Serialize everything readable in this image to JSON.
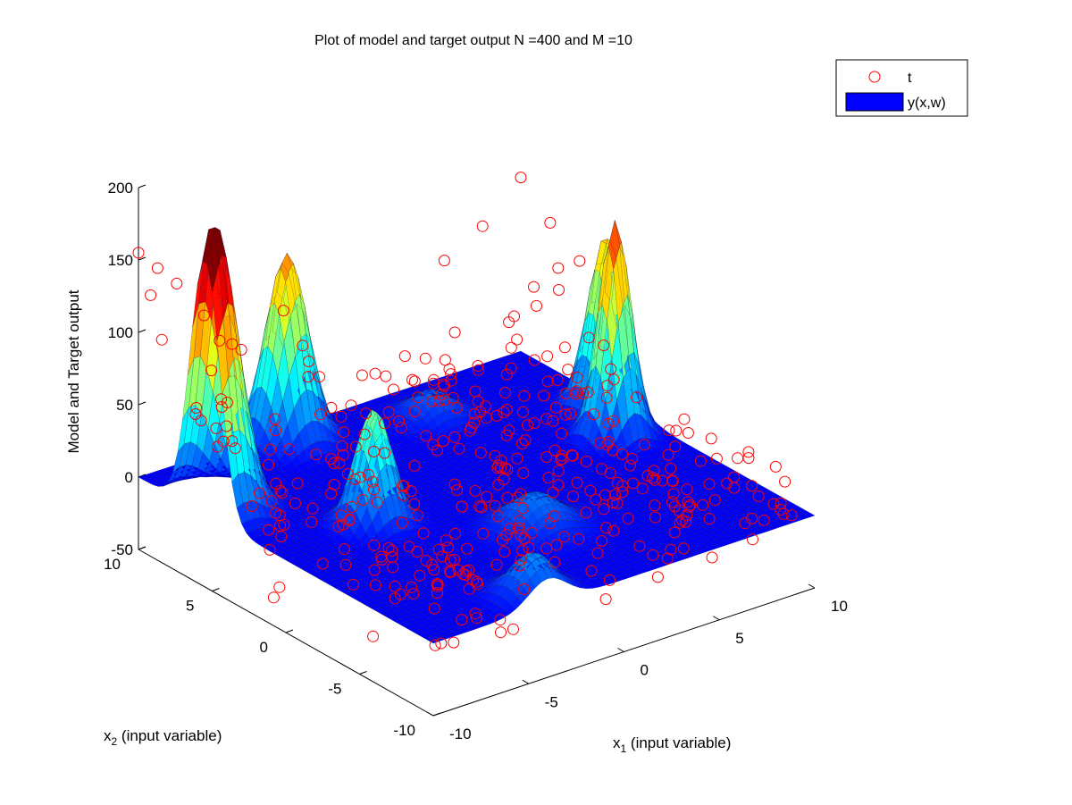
{
  "chart_data": {
    "type": "surface3d",
    "title": "Plot of model and target output N =400 and M =10",
    "zlabel": "Model and Target output",
    "x1label": {
      "base": "x",
      "sub": "1",
      "rest": " (input variable)"
    },
    "x2label": {
      "base": "x",
      "sub": "2",
      "rest": " (input variable)"
    },
    "xlim": [
      -10,
      10
    ],
    "ylim": [
      -10,
      10
    ],
    "zlim": [
      -50,
      200
    ],
    "x_ticks": [
      "-10",
      "-5",
      "0",
      "5",
      "10"
    ],
    "y_ticks": [
      "-10",
      "-5",
      "0",
      "5",
      "10"
    ],
    "z_ticks": [
      "-50",
      "0",
      "50",
      "100",
      "150",
      "200"
    ],
    "grid": false,
    "legend_position": "top-right",
    "legend": [
      {
        "label": "t",
        "marker": "circle",
        "color": "#ff0000"
      },
      {
        "label": "y(x,w)",
        "marker": "patch",
        "color": "#0000ff"
      }
    ],
    "surface_peaks": [
      {
        "x1": -9.5,
        "x2": 5.5,
        "height": 200,
        "width": 1.0
      },
      {
        "x1": -3.0,
        "x2": 9.0,
        "height": 130,
        "width": 0.9
      },
      {
        "x1": -5.0,
        "x2": 0.5,
        "height": 80,
        "width": 0.8
      },
      {
        "x1": 8.0,
        "x2": 1.0,
        "height": 150,
        "width": 0.7
      },
      {
        "x1": 9.5,
        "x2": 3.5,
        "height": 120,
        "width": 0.8
      },
      {
        "x1": -4.0,
        "x2": -9.0,
        "height": 30,
        "width": 1.0
      },
      {
        "x1": 0.0,
        "x2": -4.0,
        "height": 25,
        "width": 1.2
      },
      {
        "x1": 3.0,
        "x2": 7.0,
        "height": 20,
        "width": 1.0
      }
    ],
    "targets": {
      "n": 400,
      "color": "#ff0000",
      "sample_points": [
        {
          "x1": -10.0,
          "x2": 10.0,
          "t": 155
        },
        {
          "x1": -9.0,
          "x2": 10.0,
          "t": 140
        },
        {
          "x1": -8.0,
          "x2": 10.0,
          "t": 125
        },
        {
          "x1": -6.0,
          "x2": 10.0,
          "t": 110
        },
        {
          "x1": 6.0,
          "x2": 10.0,
          "t": 80
        },
        {
          "x1": 8.0,
          "x2": 10.0,
          "t": 95
        },
        {
          "x1": 10.0,
          "x2": 10.0,
          "t": 120
        },
        {
          "x1": 10.0,
          "x2": 8.0,
          "t": 100
        },
        {
          "x1": 10.0,
          "x2": 6.0,
          "t": 85
        }
      ]
    }
  }
}
